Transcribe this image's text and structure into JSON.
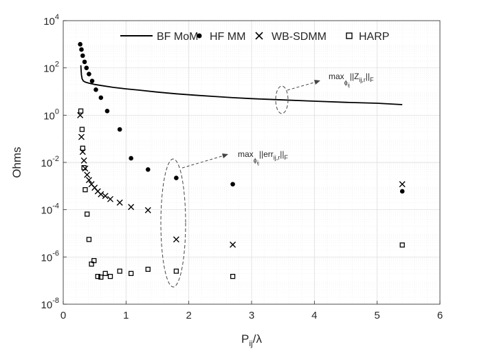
{
  "chart_data": {
    "type": "scatter",
    "yscale": "log",
    "xlim": [
      0,
      6
    ],
    "ylim": [
      1e-08,
      10000.0
    ],
    "xticks": [
      0,
      1,
      2,
      3,
      4,
      5,
      6
    ],
    "yticks": [
      {
        "value": 1e-08,
        "base": "10",
        "exp": "-8"
      },
      {
        "value": 1e-06,
        "base": "10",
        "exp": "-6"
      },
      {
        "value": 0.0001,
        "base": "10",
        "exp": "-4"
      },
      {
        "value": 0.01,
        "base": "10",
        "exp": "-2"
      },
      {
        "value": 1.0,
        "base": "10",
        "exp": "0"
      },
      {
        "value": 100.0,
        "base": "10",
        "exp": "2"
      },
      {
        "value": 10000.0,
        "base": "10",
        "exp": "4"
      }
    ],
    "xlabel": {
      "main": "P",
      "sub": "ij",
      "tail": "/λ"
    },
    "ylabel": "Ohms",
    "grid": true,
    "legend_position": "top",
    "series": [
      {
        "name": "BF MoM",
        "style": "line",
        "color": "#000000",
        "x": [
          0.28,
          0.285,
          0.29,
          0.3,
          0.32,
          0.35,
          0.4,
          0.5,
          0.6,
          0.8,
          1.0,
          1.2,
          1.5,
          1.8,
          2.1,
          2.4,
          2.7,
          3.0,
          3.5,
          4.0,
          4.5,
          5.0,
          5.4
        ],
        "y": [
          130,
          80,
          50,
          35,
          28,
          25,
          23,
          20,
          18,
          15,
          13,
          11.5,
          9.5,
          8,
          7,
          6.2,
          5.5,
          5.0,
          4.4,
          3.9,
          3.5,
          3.2,
          2.8
        ]
      },
      {
        "name": "HF MM",
        "style": "dot",
        "color": "#000000",
        "x": [
          0.27,
          0.29,
          0.31,
          0.34,
          0.37,
          0.41,
          0.46,
          0.52,
          0.6,
          0.7,
          0.9,
          1.08,
          1.35,
          1.8,
          2.7,
          5.4
        ],
        "y": [
          1000,
          600,
          330,
          180,
          100,
          55,
          28,
          12,
          5.5,
          1.5,
          0.25,
          0.015,
          0.005,
          0.0022,
          0.0012,
          0.0006
        ]
      },
      {
        "name": "WB-SDMM",
        "style": "x",
        "color": "#000000",
        "x": [
          0.27,
          0.29,
          0.31,
          0.33,
          0.35,
          0.38,
          0.41,
          0.45,
          0.5,
          0.55,
          0.6,
          0.67,
          0.75,
          0.9,
          1.08,
          1.35,
          1.8,
          2.7,
          5.4
        ],
        "y": [
          1.0,
          0.12,
          0.028,
          0.012,
          0.0055,
          0.003,
          0.0018,
          0.0012,
          0.00085,
          0.0006,
          0.00045,
          0.00038,
          0.00028,
          0.0002,
          0.00013,
          9.5e-05,
          5.5e-06,
          3.3e-06,
          0.0012
        ]
      },
      {
        "name": "HARP",
        "style": "square",
        "color": "#000000",
        "x": [
          0.28,
          0.3,
          0.31,
          0.33,
          0.35,
          0.38,
          0.41,
          0.45,
          0.49,
          0.55,
          0.6,
          0.67,
          0.75,
          0.9,
          1.08,
          1.35,
          1.8,
          2.7,
          5.4
        ],
        "y": [
          1.5,
          0.25,
          0.04,
          0.006,
          0.0007,
          6.5e-05,
          5.5e-06,
          5e-07,
          7e-07,
          1.5e-07,
          1.4e-07,
          2e-07,
          1.5e-07,
          2.5e-07,
          2e-07,
          3e-07,
          2.5e-07,
          1.5e-07,
          3.2e-06
        ]
      }
    ],
    "annotations": [
      {
        "id": "norm",
        "text_main": "max",
        "text_sub": "ϕ",
        "text_subsub": "ij",
        "text_body": "||Z",
        "text_body_sub": "ij,r",
        "text_end": "||",
        "text_end_sub": "F"
      },
      {
        "id": "err",
        "text_main": "max",
        "text_sub": "ϕ",
        "text_subsub": "ij",
        "text_body": "||err",
        "text_body_sub": "ij,r",
        "text_end": "||",
        "text_end_sub": "F"
      }
    ]
  }
}
